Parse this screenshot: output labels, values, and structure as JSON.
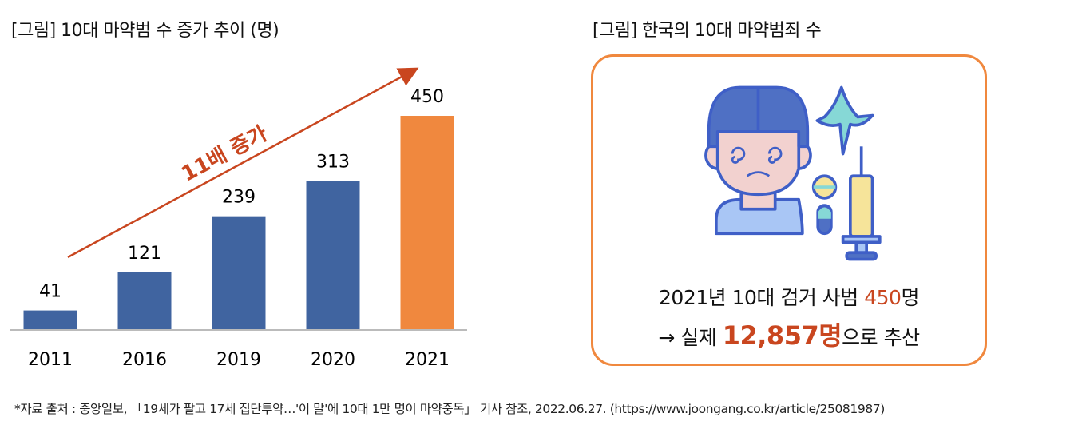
{
  "left": {
    "title": "[그림] 10대 마약범 수 증가 추이 (명)"
  },
  "right": {
    "title": "[그림] 한국의 10대 마약범죄 수",
    "line1_prefix": "2021년 10대 검거 사범 ",
    "line1_value": "450",
    "line1_suffix": "명",
    "line2_arrow": "→",
    "line2_prefix": " 실제 ",
    "line2_value": "12,857명",
    "line2_suffix": "으로 추산",
    "illustration": "drugged-teen-illustration"
  },
  "footer": "*자료 출처 : 중앙일보, 「19세가 팔고 17세 집단투약…'이 말'에 10대 1만 명이 마약중독」 기사 참조, 2022.06.27. (https://www.joongang.co.kr/article/25081987)",
  "colors": {
    "bar": "#4064A0",
    "highlight_bar": "#F0883E",
    "accent": "#C9461F"
  },
  "chart_data": {
    "type": "bar",
    "title": "[그림] 10대 마약범 수 증가 추이 (명)",
    "categories": [
      "2011",
      "2016",
      "2019",
      "2020",
      "2021"
    ],
    "values": [
      41,
      121,
      239,
      313,
      450
    ],
    "highlight_index": 4,
    "annotation": "11배 증가",
    "xlabel": "",
    "ylabel": "",
    "ylim": [
      0,
      450
    ],
    "grid": false
  }
}
